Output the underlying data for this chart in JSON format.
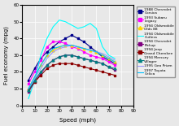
{
  "title": "",
  "xlabel": "Speed (mph)",
  "ylabel": "Fuel economy (mpg)",
  "xlim": [
    0,
    90
  ],
  "ylim": [
    0,
    60
  ],
  "xticks": [
    0,
    10,
    20,
    30,
    40,
    50,
    60,
    70,
    80,
    90
  ],
  "yticks": [
    0,
    10,
    20,
    30,
    40,
    50,
    60
  ],
  "series": [
    {
      "label": "1988 Chevrolet\nCorsica",
      "color": "#00008B",
      "marker": "s",
      "speed": [
        5,
        10,
        15,
        20,
        25,
        30,
        35,
        40,
        45,
        50,
        55,
        60,
        65,
        70,
        75
      ],
      "mpg": [
        15,
        22,
        28,
        32,
        35,
        38,
        40,
        42,
        40,
        38,
        35,
        32,
        29,
        27,
        25
      ]
    },
    {
      "label": "1993 Subaru\nLegacy",
      "color": "#FF00FF",
      "marker": "s",
      "speed": [
        5,
        10,
        15,
        20,
        25,
        30,
        35,
        40,
        45,
        50,
        55,
        60,
        65,
        70,
        75
      ],
      "mpg": [
        13,
        20,
        27,
        35,
        38,
        38,
        37,
        35,
        34,
        32,
        30,
        29,
        28,
        26,
        24
      ]
    },
    {
      "label": "1994 Oldsmobile\nOlds 88",
      "color": "#FFD700",
      "marker": "^",
      "speed": [
        5,
        10,
        15,
        20,
        25,
        30,
        35,
        40,
        45,
        50,
        55,
        60,
        65,
        70,
        75
      ],
      "mpg": [
        10,
        17,
        24,
        30,
        33,
        35,
        36,
        36,
        35,
        34,
        33,
        32,
        30,
        28,
        26
      ]
    },
    {
      "label": "1994 Oldsmobile\nCutless",
      "color": "#00FFFF",
      "marker": "None",
      "speed": [
        5,
        10,
        15,
        20,
        25,
        30,
        35,
        40,
        45,
        50,
        55,
        60,
        65,
        70,
        75
      ],
      "mpg": [
        4,
        15,
        30,
        40,
        47,
        51,
        50,
        48,
        46,
        47,
        49,
        46,
        35,
        30,
        28
      ]
    },
    {
      "label": "1994 Chevrolet\nPickup",
      "color": "#800080",
      "marker": "s",
      "speed": [
        5,
        10,
        15,
        20,
        25,
        30,
        35,
        40,
        45,
        50,
        55,
        60,
        65,
        70,
        75
      ],
      "mpg": [
        8,
        14,
        19,
        24,
        27,
        29,
        30,
        30,
        29,
        28,
        27,
        26,
        25,
        23,
        21
      ]
    },
    {
      "label": "1994 Jeep\nGrand Cherokee",
      "color": "#8B0000",
      "marker": "s",
      "speed": [
        5,
        10,
        15,
        20,
        25,
        30,
        35,
        40,
        45,
        50,
        55,
        60,
        65,
        70,
        75
      ],
      "mpg": [
        9,
        14,
        18,
        22,
        24,
        25,
        25,
        25,
        24,
        23,
        22,
        21,
        20,
        19,
        18
      ]
    },
    {
      "label": "1994 Mercury\nVillager",
      "color": "#008080",
      "marker": "^",
      "speed": [
        5,
        10,
        15,
        20,
        25,
        30,
        35,
        40,
        45,
        50,
        55,
        60,
        65,
        70,
        75
      ],
      "mpg": [
        9,
        15,
        20,
        24,
        27,
        29,
        30,
        30,
        29,
        28,
        27,
        26,
        25,
        23,
        22
      ]
    },
    {
      "label": "1995 Geo Prizm",
      "color": "#9999FF",
      "marker": "None",
      "speed": [
        5,
        10,
        15,
        20,
        25,
        30,
        35,
        40,
        45,
        50,
        55,
        60,
        65,
        70,
        75
      ],
      "mpg": [
        10,
        16,
        22,
        28,
        32,
        34,
        35,
        36,
        35,
        34,
        33,
        32,
        31,
        29,
        27
      ]
    },
    {
      "label": "1997 Toyota\nCelica",
      "color": "#00BFFF",
      "marker": "None",
      "speed": [
        5,
        10,
        15,
        20,
        25,
        30,
        35,
        40,
        45,
        50,
        55,
        60,
        65,
        70,
        75
      ],
      "mpg": [
        10,
        17,
        24,
        30,
        34,
        35,
        36,
        36,
        35,
        34,
        33,
        32,
        30,
        28,
        26
      ]
    }
  ]
}
